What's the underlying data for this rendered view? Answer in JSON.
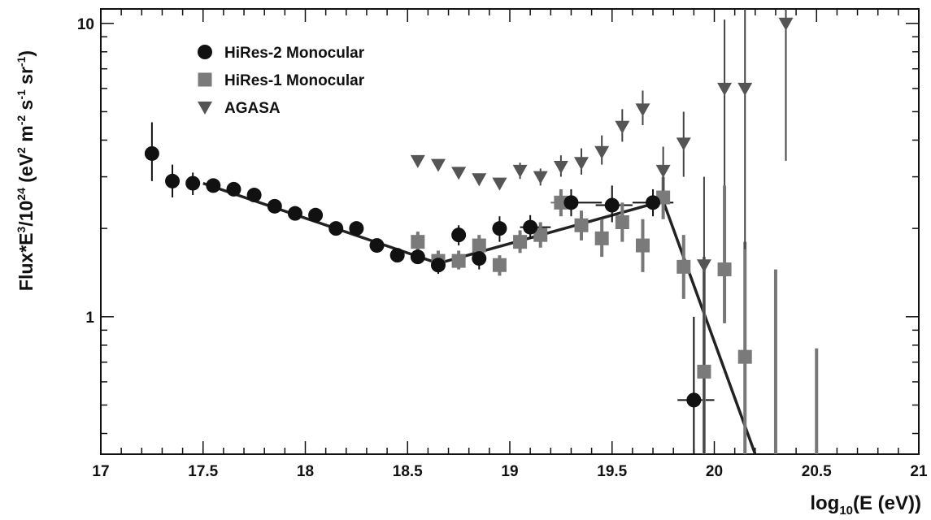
{
  "chart_data": {
    "type": "scatter",
    "title": "",
    "xlabel": {
      "prefix": "log",
      "sub": "10",
      "suffix": "(E (eV))"
    },
    "ylabel": {
      "base": "Flux*E",
      "e3": "3",
      "mid": "/10",
      "e24": "24",
      "unit_open": " (eV",
      "e2": "2",
      "m": " m",
      "em2": "-2",
      "s": " s",
      "em1a": "-1",
      "sr": " sr",
      "em1b": "-1",
      "close": ")"
    },
    "xlim": [
      17,
      21
    ],
    "ylim": [
      0.34,
      11.2
    ],
    "yscale": "log",
    "grid": false,
    "legend_position": "top-left",
    "x_ticks": [
      {
        "value": 17,
        "label": "17"
      },
      {
        "value": 17.5,
        "label": "17.5"
      },
      {
        "value": 18,
        "label": "18"
      },
      {
        "value": 18.5,
        "label": "18.5"
      },
      {
        "value": 19,
        "label": "19"
      },
      {
        "value": 19.5,
        "label": "19.5"
      },
      {
        "value": 20,
        "label": "20"
      },
      {
        "value": 20.5,
        "label": "20.5"
      },
      {
        "value": 21,
        "label": "21"
      }
    ],
    "y_ticks": [
      {
        "value": 1,
        "label": "1"
      },
      {
        "value": 10,
        "label": "10"
      }
    ],
    "series": [
      {
        "name": "HiRes-2 Monocular",
        "marker": "circle",
        "color": "#111111",
        "points": [
          {
            "x": 17.25,
            "y": 3.6,
            "lo": 2.9,
            "hi": 4.6
          },
          {
            "x": 17.35,
            "y": 2.9,
            "lo": 2.55,
            "hi": 3.3
          },
          {
            "x": 17.45,
            "y": 2.85,
            "lo": 2.6,
            "hi": 3.1
          },
          {
            "x": 17.55,
            "y": 2.8
          },
          {
            "x": 17.65,
            "y": 2.72
          },
          {
            "x": 17.75,
            "y": 2.6
          },
          {
            "x": 17.85,
            "y": 2.38
          },
          {
            "x": 17.95,
            "y": 2.25
          },
          {
            "x": 18.05,
            "y": 2.22
          },
          {
            "x": 18.15,
            "y": 2.0
          },
          {
            "x": 18.25,
            "y": 2.0
          },
          {
            "x": 18.35,
            "y": 1.75
          },
          {
            "x": 18.45,
            "y": 1.62
          },
          {
            "x": 18.55,
            "y": 1.6
          },
          {
            "x": 18.65,
            "y": 1.5,
            "lo": 1.4,
            "hi": 1.62
          },
          {
            "x": 18.75,
            "y": 1.9,
            "lo": 1.75,
            "hi": 2.05
          },
          {
            "x": 18.85,
            "y": 1.58,
            "lo": 1.45,
            "hi": 1.72
          },
          {
            "x": 18.95,
            "y": 2.0,
            "lo": 1.8,
            "hi": 2.2
          },
          {
            "x": 19.1,
            "y": 2.02,
            "lo": 1.85,
            "hi": 2.22,
            "xlo": 19.05,
            "xhi": 19.2
          },
          {
            "x": 19.3,
            "y": 2.45,
            "lo": 2.2,
            "hi": 2.72,
            "xlo": 19.22,
            "xhi": 19.45
          },
          {
            "x": 19.5,
            "y": 2.4,
            "lo": 2.1,
            "hi": 2.8,
            "xlo": 19.42,
            "xhi": 19.6
          },
          {
            "x": 19.7,
            "y": 2.45,
            "lo": 2.2,
            "hi": 2.72,
            "xlo": 19.6,
            "xhi": 19.8
          },
          {
            "x": 19.9,
            "y": 0.52,
            "lo": 0.34,
            "hi": 1.0,
            "xlo": 19.82,
            "xhi": 20.0
          }
        ]
      },
      {
        "name": "HiRes-1 Monocular",
        "marker": "square",
        "color": "#7a7a7a",
        "points": [
          {
            "x": 18.55,
            "y": 1.8,
            "lo": 1.65,
            "hi": 1.95
          },
          {
            "x": 18.65,
            "y": 1.55,
            "lo": 1.45,
            "hi": 1.68
          },
          {
            "x": 18.75,
            "y": 1.55,
            "lo": 1.45,
            "hi": 1.68
          },
          {
            "x": 18.85,
            "y": 1.75,
            "lo": 1.6,
            "hi": 1.9
          },
          {
            "x": 18.95,
            "y": 1.5,
            "lo": 1.38,
            "hi": 1.62
          },
          {
            "x": 19.05,
            "y": 1.8,
            "lo": 1.65,
            "hi": 1.97
          },
          {
            "x": 19.15,
            "y": 1.9,
            "lo": 1.72,
            "hi": 2.1
          },
          {
            "x": 19.25,
            "y": 2.45,
            "lo": 2.2,
            "hi": 2.72,
            "xlo": 19.2,
            "xhi": 19.32
          },
          {
            "x": 19.35,
            "y": 2.05,
            "lo": 1.82,
            "hi": 2.3
          },
          {
            "x": 19.45,
            "y": 1.85,
            "lo": 1.6,
            "hi": 2.15
          },
          {
            "x": 19.55,
            "y": 2.1,
            "lo": 1.8,
            "hi": 2.45
          },
          {
            "x": 19.65,
            "y": 1.75,
            "lo": 1.42,
            "hi": 2.15
          },
          {
            "x": 19.75,
            "y": 2.55,
            "lo": 2.15,
            "hi": 3.0
          },
          {
            "x": 19.85,
            "y": 1.48,
            "lo": 1.15,
            "hi": 1.9
          },
          {
            "x": 19.95,
            "y": 0.65,
            "lo": 0.34,
            "hi": 1.6
          },
          {
            "x": 20.05,
            "y": 1.45,
            "lo": 0.95,
            "hi": 2.8
          },
          {
            "x": 20.15,
            "y": 0.73,
            "lo": 0.34,
            "hi": 1.8
          },
          {
            "x": 20.3,
            "y": null,
            "lo": 0.34,
            "hi": 1.45
          },
          {
            "x": 20.5,
            "y": null,
            "lo": 0.34,
            "hi": 0.78
          }
        ]
      },
      {
        "name": "AGASA",
        "marker": "triangle-down",
        "color": "#555555",
        "points": [
          {
            "x": 18.55,
            "y": 3.4
          },
          {
            "x": 18.65,
            "y": 3.3
          },
          {
            "x": 18.75,
            "y": 3.1
          },
          {
            "x": 18.85,
            "y": 2.95
          },
          {
            "x": 18.95,
            "y": 2.85
          },
          {
            "x": 19.05,
            "y": 3.15,
            "lo": 2.95,
            "hi": 3.35
          },
          {
            "x": 19.15,
            "y": 3.0,
            "lo": 2.8,
            "hi": 3.2
          },
          {
            "x": 19.25,
            "y": 3.25,
            "lo": 3.0,
            "hi": 3.55
          },
          {
            "x": 19.35,
            "y": 3.35,
            "lo": 3.05,
            "hi": 3.75
          },
          {
            "x": 19.45,
            "y": 3.65,
            "lo": 3.3,
            "hi": 4.15
          },
          {
            "x": 19.55,
            "y": 4.45,
            "lo": 3.95,
            "hi": 5.1
          },
          {
            "x": 19.65,
            "y": 5.1,
            "lo": 4.5,
            "hi": 5.9
          },
          {
            "x": 19.75,
            "y": 3.15,
            "lo": 2.6,
            "hi": 3.8
          },
          {
            "x": 19.85,
            "y": 3.9,
            "lo": 3.0,
            "hi": 5.0
          },
          {
            "x": 19.95,
            "y": 1.5,
            "lo": 0.34,
            "hi": 3.0
          },
          {
            "x": 20.05,
            "y": 6.0,
            "lo": 2.8,
            "hi": 10.3
          },
          {
            "x": 20.15,
            "y": 6.0,
            "lo": 1.7,
            "hi": 11.2
          },
          {
            "x": 20.35,
            "y": 10.0,
            "lo": 3.4,
            "hi": 11.2
          }
        ]
      }
    ],
    "fit_line": {
      "color": "#222222",
      "points": [
        {
          "x": 17.5,
          "y": 2.85
        },
        {
          "x": 18.65,
          "y": 1.52
        },
        {
          "x": 19.75,
          "y": 2.48
        },
        {
          "x": 20.2,
          "y": 0.34
        }
      ]
    }
  }
}
